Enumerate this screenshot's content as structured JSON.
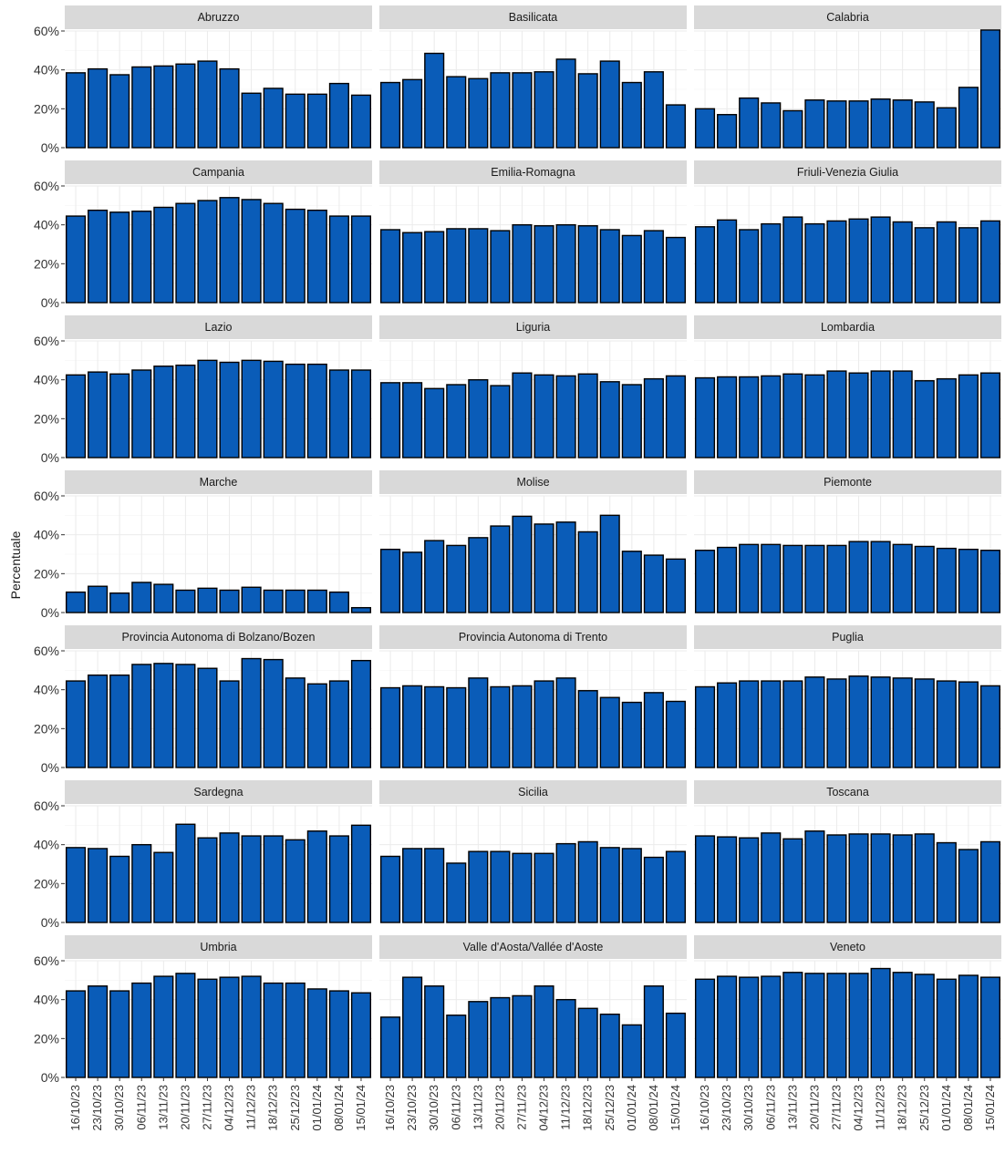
{
  "chart_data": {
    "type": "bar",
    "ylabel": "Percentuale",
    "xlabel": "",
    "ylim": [
      0,
      60
    ],
    "y_ticks": [
      0,
      20,
      40,
      60
    ],
    "y_tick_labels": [
      "0%",
      "20%",
      "40%",
      "60%"
    ],
    "grid": true,
    "bar_color": "#0a5cb8",
    "categories": [
      "16/10/23",
      "23/10/23",
      "30/10/23",
      "06/11/23",
      "13/11/23",
      "20/11/23",
      "27/11/23",
      "04/12/23",
      "11/12/23",
      "18/12/23",
      "25/12/23",
      "01/01/24",
      "08/01/24",
      "15/01/24"
    ],
    "panels": [
      {
        "name": "Abruzzo",
        "values": [
          38.5,
          40.5,
          37.5,
          41.5,
          42,
          43,
          44.5,
          40.5,
          28,
          30.5,
          27.5,
          27.5,
          33,
          27
        ]
      },
      {
        "name": "Basilicata",
        "values": [
          33.5,
          35,
          48.5,
          36.5,
          35.5,
          38.5,
          38.5,
          39,
          45.5,
          38,
          44.5,
          33.5,
          39,
          22
        ]
      },
      {
        "name": "Calabria",
        "values": [
          20,
          17,
          25.5,
          23,
          19,
          24.5,
          24,
          24,
          25,
          24.5,
          23.5,
          20.5,
          31,
          60.5
        ]
      },
      {
        "name": "Campania",
        "values": [
          44.5,
          47.5,
          46.5,
          47,
          49,
          51,
          52.5,
          54,
          53,
          51,
          48,
          47.5,
          44.5,
          44.5
        ]
      },
      {
        "name": "Emilia-Romagna",
        "values": [
          37.5,
          36,
          36.5,
          38,
          38,
          37,
          40,
          39.5,
          40,
          39.5,
          37.5,
          34.5,
          37,
          33.5
        ]
      },
      {
        "name": "Friuli-Venezia Giulia",
        "values": [
          39,
          42.5,
          37.5,
          40.5,
          44,
          40.5,
          42,
          43,
          44,
          41.5,
          38.5,
          41.5,
          38.5,
          42
        ]
      },
      {
        "name": "Lazio",
        "values": [
          42.5,
          44,
          43,
          45,
          47,
          47.5,
          50,
          49,
          50,
          49.5,
          48,
          48,
          45,
          45
        ]
      },
      {
        "name": "Liguria",
        "values": [
          38.5,
          38.5,
          35.5,
          37.5,
          40,
          37,
          43.5,
          42.5,
          42,
          43,
          39,
          37.5,
          40.5,
          42
        ]
      },
      {
        "name": "Lombardia",
        "values": [
          41,
          41.5,
          41.5,
          42,
          43,
          42.5,
          44.5,
          43.5,
          44.5,
          44.5,
          39.5,
          40.5,
          42.5,
          43.5
        ]
      },
      {
        "name": "Marche",
        "values": [
          10.5,
          13.5,
          10,
          15.5,
          14.5,
          11.5,
          12.5,
          11.5,
          13,
          11.5,
          11.5,
          11.5,
          10.5,
          2.5
        ]
      },
      {
        "name": "Molise",
        "values": [
          32.5,
          31,
          37,
          34.5,
          38.5,
          44.5,
          49.5,
          45.5,
          46.5,
          41.5,
          50,
          31.5,
          29.5,
          27.5
        ]
      },
      {
        "name": "Piemonte",
        "values": [
          32,
          33.5,
          35,
          35,
          34.5,
          34.5,
          34.5,
          36.5,
          36.5,
          35,
          34,
          33,
          32.5,
          32
        ]
      },
      {
        "name": "Provincia Autonoma di Bolzano/Bozen",
        "values": [
          44.5,
          47.5,
          47.5,
          53,
          53.5,
          53,
          51,
          44.5,
          56,
          55.5,
          46,
          43,
          44.5,
          55
        ]
      },
      {
        "name": "Provincia Autonoma di Trento",
        "values": [
          41,
          42,
          41.5,
          41,
          46,
          41.5,
          42,
          44.5,
          46,
          39.5,
          36,
          33.5,
          38.5,
          34
        ]
      },
      {
        "name": "Puglia",
        "values": [
          41.5,
          43.5,
          44.5,
          44.5,
          44.5,
          46.5,
          45.5,
          47,
          46.5,
          46,
          45.5,
          44.5,
          44,
          42
        ]
      },
      {
        "name": "Sardegna",
        "values": [
          38.5,
          38,
          34,
          40,
          36,
          50.5,
          43.5,
          46,
          44.5,
          44.5,
          42.5,
          47,
          44.5,
          50
        ]
      },
      {
        "name": "Sicilia",
        "values": [
          34,
          38,
          38,
          30.5,
          36.5,
          36.5,
          35.5,
          35.5,
          40.5,
          41.5,
          38.5,
          38,
          33.5,
          36.5
        ]
      },
      {
        "name": "Toscana",
        "values": [
          44.5,
          44,
          43.5,
          46,
          43,
          47,
          45,
          45.5,
          45.5,
          45,
          45.5,
          41,
          37.5,
          41.5
        ]
      },
      {
        "name": "Umbria",
        "values": [
          44.5,
          47,
          44.5,
          48.5,
          52,
          53.5,
          50.5,
          51.5,
          52,
          48.5,
          48.5,
          45.5,
          44.5,
          43.5
        ]
      },
      {
        "name": "Valle d'Aosta/Vallée d'Aoste",
        "values": [
          31,
          51.5,
          47,
          32,
          39,
          41,
          42,
          47,
          40,
          35.5,
          32.5,
          27,
          47,
          33
        ]
      },
      {
        "name": "Veneto",
        "values": [
          50.5,
          52,
          51.5,
          52,
          54,
          53.5,
          53.5,
          53.5,
          56,
          54,
          53,
          50.5,
          52.5,
          51.5
        ]
      }
    ]
  }
}
